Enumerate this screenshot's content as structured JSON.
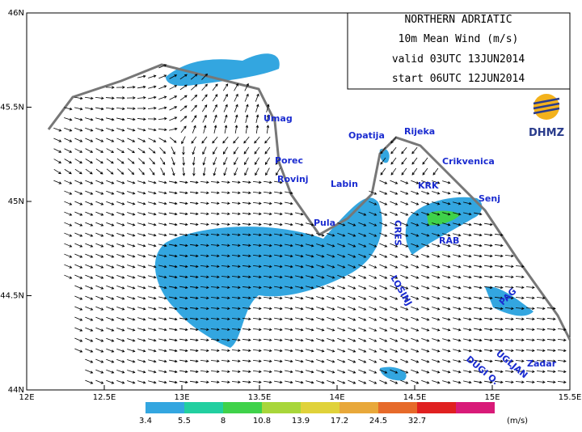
{
  "header": {
    "title": "NORTHERN ADRIATIC",
    "subtitle": "10m Mean Wind (m/s)",
    "valid": "valid 03UTC 13JUN2014",
    "start": "start 06UTC 12JUN2014"
  },
  "logo": {
    "text": "DHMZ"
  },
  "axes": {
    "x_ticks": [
      "12E",
      "12.5E",
      "13E",
      "13.5E",
      "14E",
      "14.5E",
      "15E",
      "15.5E"
    ],
    "y_ticks": [
      "44N",
      "44.5N",
      "45N",
      "45.5N",
      "46N"
    ]
  },
  "places": [
    "Umag",
    "Porec",
    "Rovinj",
    "Pula",
    "Labin",
    "Opatija",
    "Rijeka",
    "Crikvenica",
    "KRK",
    "Senj",
    "RAB",
    "CRES",
    "LOSINJ",
    "PAG",
    "Zadar",
    "DUGI O.",
    "UGLJAN"
  ],
  "colorbar": {
    "levels": [
      "3.4",
      "5.5",
      "8",
      "10.8",
      "13.9",
      "17.2",
      "24.5",
      "32.7"
    ],
    "colors": [
      "#33a6e0",
      "#22cfa0",
      "#3fd24a",
      "#a8d63a",
      "#e0d23a",
      "#e8a83a",
      "#e66a2a",
      "#e02020",
      "#d81a78"
    ],
    "unit": "(m/s)"
  }
}
